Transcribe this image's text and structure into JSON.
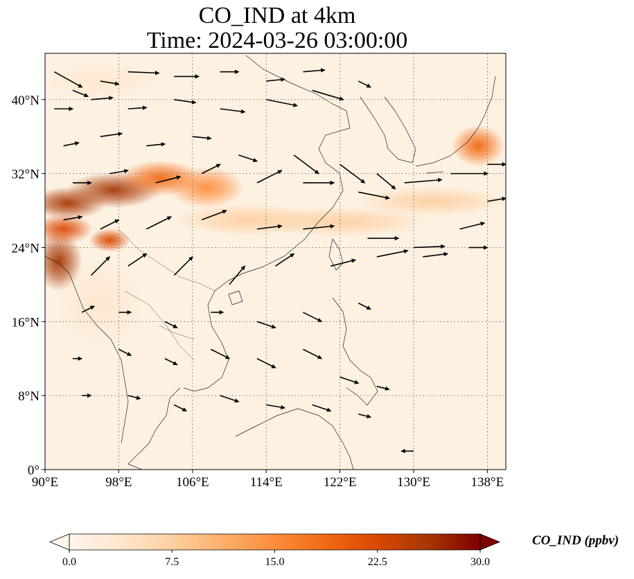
{
  "title": {
    "line1": "CO_IND at 4km",
    "line2": "Time: 2024-03-26 03:00:00"
  },
  "map": {
    "extent_lon": [
      90,
      140
    ],
    "extent_lat": [
      0,
      45
    ],
    "lon_ticks": [
      {
        "value": 90,
        "label": "90°E"
      },
      {
        "value": 98,
        "label": "98°E"
      },
      {
        "value": 106,
        "label": "106°E"
      },
      {
        "value": 114,
        "label": "114°E"
      },
      {
        "value": 122,
        "label": "122°E"
      },
      {
        "value": 130,
        "label": "130°E"
      },
      {
        "value": 138,
        "label": "138°E"
      }
    ],
    "lat_ticks": [
      {
        "value": 0,
        "label": "0°"
      },
      {
        "value": 8,
        "label": "8°N"
      },
      {
        "value": 16,
        "label": "16°N"
      },
      {
        "value": 24,
        "label": "24°N"
      },
      {
        "value": 32,
        "label": "32°N"
      },
      {
        "value": 40,
        "label": "40°N"
      }
    ],
    "gridlines": true,
    "field_plumes": [
      {
        "lon": 92.5,
        "lat": 28.8,
        "sigma_lon": 2.6,
        "sigma_lat": 1.1,
        "value": 28
      },
      {
        "lon": 97.5,
        "lat": 30.2,
        "sigma_lon": 3.2,
        "sigma_lat": 1.2,
        "value": 26
      },
      {
        "lon": 102.5,
        "lat": 31.5,
        "sigma_lon": 2.8,
        "sigma_lat": 1.2,
        "value": 20
      },
      {
        "lon": 107.5,
        "lat": 30.5,
        "sigma_lon": 2.6,
        "sigma_lat": 1.4,
        "value": 14
      },
      {
        "lon": 91.5,
        "lat": 22.5,
        "sigma_lon": 1.6,
        "sigma_lat": 2.0,
        "value": 28
      },
      {
        "lon": 92.0,
        "lat": 26.0,
        "sigma_lon": 2.0,
        "sigma_lat": 1.0,
        "value": 22
      },
      {
        "lon": 97.0,
        "lat": 24.8,
        "sigma_lon": 1.4,
        "sigma_lat": 0.8,
        "value": 22
      },
      {
        "lon": 112.0,
        "lat": 27.0,
        "sigma_lon": 5.0,
        "sigma_lat": 1.1,
        "value": 8
      },
      {
        "lon": 122.0,
        "lat": 26.8,
        "sigma_lon": 6.0,
        "sigma_lat": 1.0,
        "value": 9
      },
      {
        "lon": 132.0,
        "lat": 29.0,
        "sigma_lon": 5.0,
        "sigma_lat": 1.0,
        "value": 9
      },
      {
        "lon": 137.0,
        "lat": 35.0,
        "sigma_lon": 1.8,
        "sigma_lat": 1.4,
        "value": 18
      },
      {
        "lon": 96.0,
        "lat": 18.0,
        "sigma_lon": 3.0,
        "sigma_lat": 3.0,
        "value": 4
      },
      {
        "lon": 96.0,
        "lat": 42.0,
        "sigma_lon": 4.0,
        "sigma_lat": 1.2,
        "value": 4
      }
    ],
    "wind_arrows": [
      [
        91,
        43,
        4.5,
        -2.5
      ],
      [
        93,
        41,
        2.5,
        -1
      ],
      [
        96,
        42,
        3,
        -0.5
      ],
      [
        99,
        43,
        5,
        -0.2
      ],
      [
        104,
        42.5,
        4,
        0
      ],
      [
        109,
        43,
        3,
        0
      ],
      [
        114,
        42,
        3,
        0.3
      ],
      [
        118,
        43,
        3.5,
        0.3
      ],
      [
        91,
        39,
        3,
        0
      ],
      [
        95,
        40,
        3.5,
        0.3
      ],
      [
        99,
        39,
        3,
        0.2
      ],
      [
        104,
        40,
        3.5,
        -0.5
      ],
      [
        109,
        39,
        4,
        -0.5
      ],
      [
        114,
        40,
        5,
        -1
      ],
      [
        119,
        41,
        5,
        -1.5
      ],
      [
        124,
        42,
        2,
        -1
      ],
      [
        92,
        35,
        2.5,
        0.5
      ],
      [
        96,
        36,
        3.5,
        0.5
      ],
      [
        101,
        35,
        3,
        0.3
      ],
      [
        106,
        36,
        3,
        -0.3
      ],
      [
        111,
        34,
        3,
        -1
      ],
      [
        117,
        34,
        4,
        -3
      ],
      [
        122,
        33,
        4,
        -3
      ],
      [
        126,
        32,
        3,
        -2.5
      ],
      [
        93,
        31,
        3,
        0
      ],
      [
        97,
        32,
        3,
        0.5
      ],
      [
        102,
        31,
        4,
        1
      ],
      [
        107,
        32,
        3,
        1.5
      ],
      [
        113,
        31,
        4,
        2
      ],
      [
        118,
        31,
        5,
        0
      ],
      [
        124,
        30,
        5,
        -1
      ],
      [
        129,
        31,
        6,
        0.5
      ],
      [
        134,
        32,
        6,
        0
      ],
      [
        138,
        33,
        3,
        0
      ],
      [
        92,
        27,
        3,
        0.5
      ],
      [
        96,
        26,
        3,
        1.5
      ],
      [
        101,
        26,
        4,
        2
      ],
      [
        107,
        27,
        4,
        1.5
      ],
      [
        113,
        26,
        4,
        0.5
      ],
      [
        118,
        26,
        5,
        0.5
      ],
      [
        125,
        25,
        5,
        0
      ],
      [
        130,
        24,
        5,
        0.2
      ],
      [
        135,
        26,
        4,
        1
      ],
      [
        138,
        29,
        3,
        0.5
      ],
      [
        95,
        21,
        3,
        3
      ],
      [
        99,
        22,
        3,
        2
      ],
      [
        104,
        21,
        3,
        3
      ],
      [
        110,
        20,
        2.5,
        3
      ],
      [
        115,
        22,
        3,
        2
      ],
      [
        121,
        22,
        4,
        1
      ],
      [
        126,
        23,
        5,
        1
      ],
      [
        131,
        23,
        4,
        0.5
      ],
      [
        136,
        24,
        3,
        0
      ],
      [
        94,
        17,
        2,
        1
      ],
      [
        98,
        17,
        2,
        0
      ],
      [
        103,
        16,
        2,
        -1
      ],
      [
        108,
        17,
        2,
        0
      ],
      [
        113,
        16,
        3,
        -1
      ],
      [
        118,
        17,
        3,
        -1.5
      ],
      [
        124,
        18,
        2,
        -1
      ],
      [
        93,
        12,
        1.5,
        0
      ],
      [
        98,
        13,
        2,
        -1
      ],
      [
        103,
        12,
        2,
        -1
      ],
      [
        108,
        13,
        3,
        -1.5
      ],
      [
        113,
        12,
        3,
        -1.5
      ],
      [
        118,
        13,
        3,
        -1.5
      ],
      [
        122,
        10,
        3,
        -1
      ],
      [
        126,
        9,
        2,
        -0.5
      ],
      [
        94,
        8,
        1.5,
        0
      ],
      [
        99,
        8,
        2,
        -0.5
      ],
      [
        104,
        7,
        2,
        -1
      ],
      [
        109,
        8,
        3,
        -1
      ],
      [
        114,
        7,
        3,
        -0.5
      ],
      [
        119,
        7,
        3,
        -1
      ],
      [
        124,
        6,
        2,
        -0.5
      ],
      [
        130,
        2,
        -2,
        0
      ]
    ]
  },
  "colorbar": {
    "label": "CO_IND (ppbv)",
    "min": 0.0,
    "max": 30.0,
    "ticks": [
      "0.0",
      "7.5",
      "15.0",
      "22.5",
      "30.0"
    ],
    "colors": [
      "#fff5eb",
      "#fee6ce",
      "#fdd0a2",
      "#fdae6b",
      "#fd8d3c",
      "#f16913",
      "#d94801",
      "#a63603",
      "#7f0000"
    ]
  }
}
